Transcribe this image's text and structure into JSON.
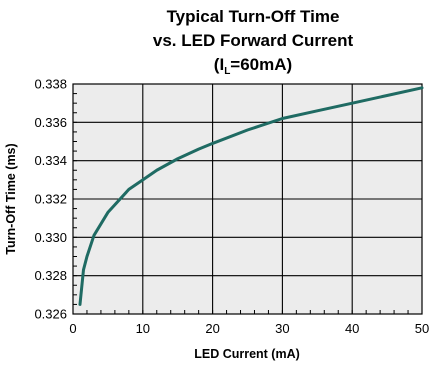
{
  "chart_data": {
    "type": "line",
    "title": {
      "line1": "Typical Turn-Off Time",
      "line2": "vs. LED Forward Current",
      "line3_prefix": "(I",
      "line3_sub": "L",
      "line3_suffix": "=60mA)"
    },
    "xlabel": "LED Current (mA)",
    "ylabel": "Turn-Off Time (ms)",
    "xlim": [
      0,
      50
    ],
    "ylim": [
      0.326,
      0.338
    ],
    "x_ticks": [
      "0",
      "10",
      "20",
      "30",
      "40",
      "50"
    ],
    "y_ticks": [
      "0.326",
      "0.328",
      "0.330",
      "0.332",
      "0.334",
      "0.336",
      "0.338"
    ],
    "grid": true,
    "series": [
      {
        "color": "#1f6b63",
        "x": [
          1,
          1.5,
          2,
          3,
          4,
          5,
          6,
          8,
          10,
          12,
          15,
          18,
          20,
          25,
          30,
          35,
          40,
          45,
          50
        ],
        "y": [
          0.3265,
          0.3283,
          0.329,
          0.3301,
          0.3307,
          0.3313,
          0.3317,
          0.3325,
          0.333,
          0.3335,
          0.3341,
          0.3346,
          0.3349,
          0.3356,
          0.3362,
          0.3366,
          0.337,
          0.3374,
          0.3378
        ]
      }
    ],
    "colors": {
      "plot_background": "#ececec",
      "grid": "#000000",
      "line": "#1f6b63"
    }
  }
}
